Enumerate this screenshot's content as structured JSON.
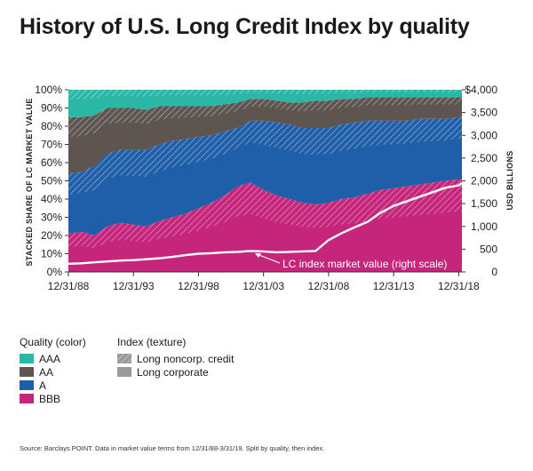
{
  "title": "History of U.S. Long Credit Index by quality",
  "source": "Source: Barclays POINT. Data in market value terms from 12/31/88-3/31/19. Split by quality, then index.",
  "legend": {
    "quality_title": "Quality (color)",
    "index_title": "Index (texture)",
    "quality": [
      {
        "label": "AAA",
        "color": "#2bb7a6"
      },
      {
        "label": "AA",
        "color": "#5e5450"
      },
      {
        "label": "A",
        "color": "#1f5ea8"
      },
      {
        "label": "BBB",
        "color": "#c5257a"
      }
    ],
    "index": [
      {
        "label": "Long noncorp. credit",
        "texture": "hatched"
      },
      {
        "label": "Long corporate",
        "texture": "solid"
      }
    ]
  },
  "chart_data": {
    "type": "area",
    "stacked": true,
    "title": "History of U.S. Long Credit Index by quality",
    "ylabel": "STACKED SHARE OF LC MARKET VALUE",
    "y2label": "USD BILLIONS",
    "ylim": [
      0,
      100
    ],
    "y2lim": [
      0,
      4000
    ],
    "x_ticks": [
      "12/31/88",
      "12/31/93",
      "12/31/98",
      "12/31/03",
      "12/31/08",
      "12/31/13",
      "12/31/18"
    ],
    "y_ticks": [
      "0%",
      "10%",
      "20%",
      "30%",
      "40%",
      "50%",
      "60%",
      "70%",
      "80%",
      "90%",
      "100%"
    ],
    "y2_ticks": [
      "0",
      "500",
      "1,000",
      "1,500",
      "2,000",
      "2,500",
      "3,000",
      "3,500",
      "$4,000"
    ],
    "x": [
      1989.0,
      1990.0,
      1991.0,
      1992.0,
      1993.0,
      1994.0,
      1995.0,
      1996.0,
      1997.0,
      1998.0,
      1999.0,
      2000.0,
      2001.0,
      2002.0,
      2003.0,
      2004.0,
      2005.0,
      2006.0,
      2007.0,
      2008.0,
      2009.0,
      2010.0,
      2011.0,
      2012.0,
      2013.0,
      2014.0,
      2015.0,
      2016.0,
      2017.0,
      2018.0,
      2019.0,
      2019.25
    ],
    "series": [
      {
        "name": "BBB",
        "values": [
          21,
          22,
          20,
          25,
          27,
          26,
          25,
          28,
          30,
          32,
          35,
          38,
          42,
          47,
          49,
          45,
          42,
          40,
          38,
          37,
          38,
          40,
          41,
          43,
          45,
          46,
          47,
          48,
          49,
          50,
          51,
          51
        ]
      },
      {
        "name": "A",
        "values": [
          33,
          33,
          38,
          40,
          40,
          41,
          42,
          42,
          42,
          41,
          39,
          37,
          35,
          32,
          34,
          38,
          40,
          41,
          41,
          42,
          41,
          41,
          41,
          40,
          38,
          37,
          36,
          36,
          35,
          34,
          34,
          34
        ]
      },
      {
        "name": "AA",
        "values": [
          31,
          30,
          28,
          25,
          23,
          23,
          22,
          21,
          19,
          18,
          17,
          16,
          15,
          14,
          12,
          12,
          12,
          12,
          14,
          15,
          15,
          14,
          13,
          13,
          13,
          13,
          13,
          12,
          12,
          12,
          11,
          11
        ]
      },
      {
        "name": "AAA",
        "values": [
          15,
          15,
          14,
          10,
          10,
          10,
          11,
          9,
          9,
          9,
          9,
          9,
          8,
          7,
          5,
          5,
          6,
          7,
          7,
          6,
          6,
          5,
          5,
          4,
          4,
          4,
          4,
          4,
          4,
          4,
          4,
          4
        ]
      }
    ],
    "line": {
      "name": "LC index market value",
      "annotation": "LC index market value (right scale)",
      "values": [
        180,
        190,
        210,
        230,
        250,
        260,
        280,
        300,
        330,
        370,
        400,
        410,
        430,
        440,
        460,
        450,
        430,
        440,
        450,
        460,
        700,
        850,
        980,
        1100,
        1300,
        1450,
        1550,
        1650,
        1750,
        1850,
        1900,
        1950
      ]
    }
  }
}
